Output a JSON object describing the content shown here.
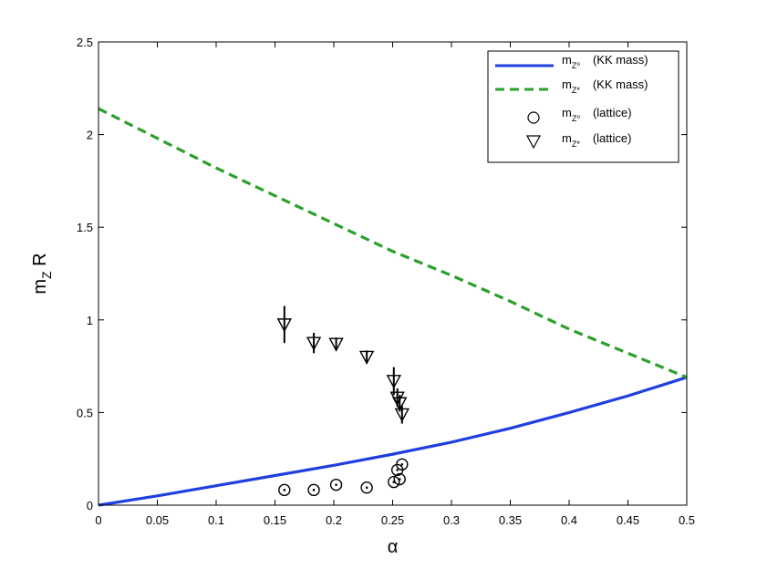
{
  "chart_data": {
    "type": "line",
    "title": "",
    "xlabel": "α",
    "ylabel": {
      "main": "m",
      "sub": "Z",
      "tail": " R"
    },
    "xlim": [
      0,
      0.5
    ],
    "ylim": [
      0,
      2.5
    ],
    "x_ticks": [
      "0",
      "0.05",
      "0.1",
      "0.15",
      "0.2",
      "0.25",
      "0.3",
      "0.35",
      "0.4",
      "0.45",
      "0.5"
    ],
    "y_ticks": [
      "0",
      "0.5",
      "1",
      "1.5",
      "2",
      "2.5"
    ],
    "grid": false,
    "legend_position": "top-right",
    "series": [
      {
        "legend": {
          "main": "m",
          "sub": "Z⁰",
          "desc": "(KK mass)"
        },
        "kind": "line",
        "style": "solid",
        "color": "#1f3fe0",
        "x": [
          0,
          0.05,
          0.1,
          0.15,
          0.2,
          0.25,
          0.3,
          0.35,
          0.4,
          0.45,
          0.5
        ],
        "y": [
          0,
          0.05,
          0.105,
          0.16,
          0.215,
          0.275,
          0.34,
          0.415,
          0.5,
          0.59,
          0.69
        ]
      },
      {
        "legend": {
          "main": "m",
          "sub": "Z*",
          "desc": "(KK mass)"
        },
        "kind": "line",
        "style": "dashed",
        "color": "#2ca02c",
        "x": [
          0,
          0.05,
          0.1,
          0.15,
          0.2,
          0.25,
          0.3,
          0.35,
          0.4,
          0.45,
          0.5
        ],
        "y": [
          2.14,
          1.98,
          1.82,
          1.67,
          1.52,
          1.37,
          1.24,
          1.1,
          0.95,
          0.82,
          0.69
        ]
      },
      {
        "legend": {
          "main": "m",
          "sub": "Z⁰",
          "desc": "(lattice)"
        },
        "kind": "scatter",
        "marker": "circle",
        "color": "#000000",
        "x": [
          0.158,
          0.183,
          0.202,
          0.228,
          0.251,
          0.254,
          0.256,
          0.258
        ],
        "y": [
          0.082,
          0.082,
          0.11,
          0.095,
          0.125,
          0.19,
          0.14,
          0.22
        ]
      },
      {
        "legend": {
          "main": "m",
          "sub": "Z*",
          "desc": "(lattice)"
        },
        "kind": "scatter",
        "marker": "triangle-down",
        "color": "#000000",
        "x": [
          0.158,
          0.183,
          0.202,
          0.228,
          0.251,
          0.254,
          0.256,
          0.258
        ],
        "y": [
          0.975,
          0.875,
          0.87,
          0.8,
          0.67,
          0.58,
          0.55,
          0.49
        ],
        "yerr": [
          0.1,
          0.055,
          0.035,
          0.035,
          0.075,
          0.05,
          0.045,
          0.05
        ]
      }
    ]
  }
}
